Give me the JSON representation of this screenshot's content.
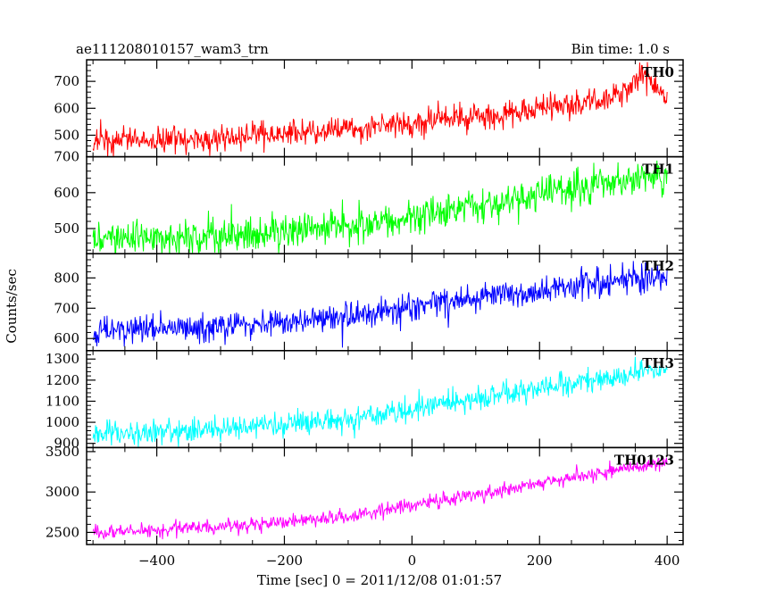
{
  "header": {
    "title": "ae111208010157_wam3_trn",
    "bin_time": "Bin time: 1.0 s"
  },
  "axes": {
    "xlabel": "Time [sec] 0 = 2011/12/08 01:01:57",
    "ylabel": "Counts/sec"
  },
  "chart_data": {
    "type": "line",
    "title": "ae111208010157_wam3_trn",
    "subtitle": "Bin time: 1.0 s",
    "xlabel": "Time [sec] 0 = 2011/12/08 01:01:57",
    "ylabel": "Counts/sec",
    "xlim": [
      -510,
      425
    ],
    "x_ticks": [
      -400,
      -200,
      0,
      200,
      400
    ],
    "x_tick_labels": [
      "−400",
      "−200",
      "0",
      "200",
      "400"
    ],
    "x_sampling": {
      "start": -500,
      "end": 400,
      "step": 1
    },
    "shared_x": true,
    "grid": false,
    "legend": "panel labels at top-right of each panel",
    "series": [
      {
        "name": "TH0",
        "color": "#ff0000",
        "ylim": [
          420,
          780
        ],
        "y_ticks": [
          500,
          600,
          700
        ],
        "y_tick_labels": [
          "500",
          "600",
          "700"
        ],
        "trend": [
          [
            -500,
            480
          ],
          [
            -300,
            490
          ],
          [
            -100,
            520
          ],
          [
            0,
            545
          ],
          [
            100,
            570
          ],
          [
            200,
            595
          ],
          [
            300,
            630
          ],
          [
            340,
            665
          ],
          [
            360,
            735
          ],
          [
            375,
            710
          ],
          [
            390,
            660
          ],
          [
            400,
            635
          ]
        ],
        "noise_sd": 24
      },
      {
        "name": "TH1",
        "color": "#00ff00",
        "ylim": [
          430,
          700
        ],
        "y_ticks": [
          500,
          600,
          700
        ],
        "y_tick_labels": [
          "500",
          "600",
          "700"
        ],
        "trend": [
          [
            -500,
            470
          ],
          [
            -300,
            482
          ],
          [
            -100,
            505
          ],
          [
            0,
            535
          ],
          [
            100,
            565
          ],
          [
            200,
            595
          ],
          [
            300,
            625
          ],
          [
            400,
            645
          ]
        ],
        "noise_sd": 23
      },
      {
        "name": "TH2",
        "color": "#0000ff",
        "ylim": [
          560,
          880
        ],
        "y_ticks": [
          600,
          700,
          800
        ],
        "y_tick_labels": [
          "600",
          "700",
          "800"
        ],
        "trend": [
          [
            -500,
            625
          ],
          [
            -300,
            640
          ],
          [
            -100,
            670
          ],
          [
            0,
            705
          ],
          [
            100,
            735
          ],
          [
            200,
            760
          ],
          [
            300,
            785
          ],
          [
            400,
            805
          ]
        ],
        "noise_sd": 24
      },
      {
        "name": "TH3",
        "color": "#00ffff",
        "ylim": [
          880,
          1340
        ],
        "y_ticks": [
          900,
          1000,
          1100,
          1200,
          1300
        ],
        "y_tick_labels": [
          "900",
          "1000",
          "1100",
          "1200",
          "1300"
        ],
        "trend": [
          [
            -500,
            940
          ],
          [
            -300,
            965
          ],
          [
            -100,
            1010
          ],
          [
            0,
            1060
          ],
          [
            100,
            1110
          ],
          [
            200,
            1160
          ],
          [
            300,
            1210
          ],
          [
            400,
            1255
          ]
        ],
        "noise_sd": 30
      },
      {
        "name": "TH0123",
        "color": "#ff00ff",
        "ylim": [
          2350,
          3550
        ],
        "y_ticks": [
          2500,
          3000,
          3500
        ],
        "y_tick_labels": [
          "2500",
          "3000",
          "3500"
        ],
        "trend": [
          [
            -500,
            2510
          ],
          [
            -300,
            2570
          ],
          [
            -100,
            2700
          ],
          [
            0,
            2840
          ],
          [
            100,
            2975
          ],
          [
            200,
            3110
          ],
          [
            300,
            3245
          ],
          [
            400,
            3380
          ]
        ],
        "noise_sd": 45
      }
    ]
  }
}
